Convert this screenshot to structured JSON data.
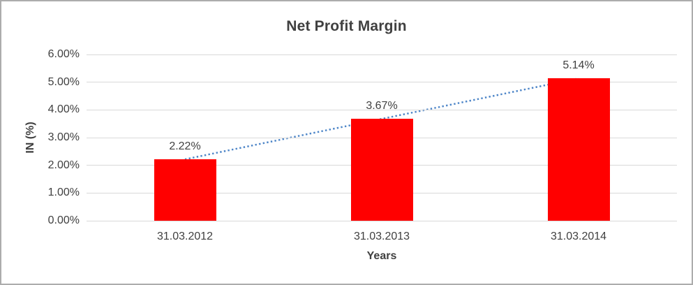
{
  "chart_data": {
    "type": "bar",
    "title": "Net Profit Margin",
    "xlabel": "Years",
    "ylabel": "IN (%)",
    "categories": [
      "31.03.2012",
      "31.03.2013",
      "31.03.2014"
    ],
    "values": [
      2.22,
      3.67,
      5.14
    ],
    "data_labels": [
      "2.22%",
      "3.67%",
      "5.14%"
    ],
    "ylim": [
      0,
      6
    ],
    "yticks": [
      {
        "label": "0.00%",
        "value": 0
      },
      {
        "label": "1.00%",
        "value": 1
      },
      {
        "label": "2.00%",
        "value": 2
      },
      {
        "label": "3.00%",
        "value": 3
      },
      {
        "label": "4.00%",
        "value": 4
      },
      {
        "label": "5.00%",
        "value": 5
      },
      {
        "label": "6.00%",
        "value": 6
      }
    ],
    "grid": true,
    "legend": "none",
    "bar_color": "#FF0000",
    "trendline": {
      "type": "linear",
      "style": "dotted",
      "color": "#4E86C8"
    },
    "colors": {
      "gridline": "#D9D9D9",
      "text": "#404040",
      "border": "#ACACAC",
      "background": "#FFFFFF"
    }
  }
}
